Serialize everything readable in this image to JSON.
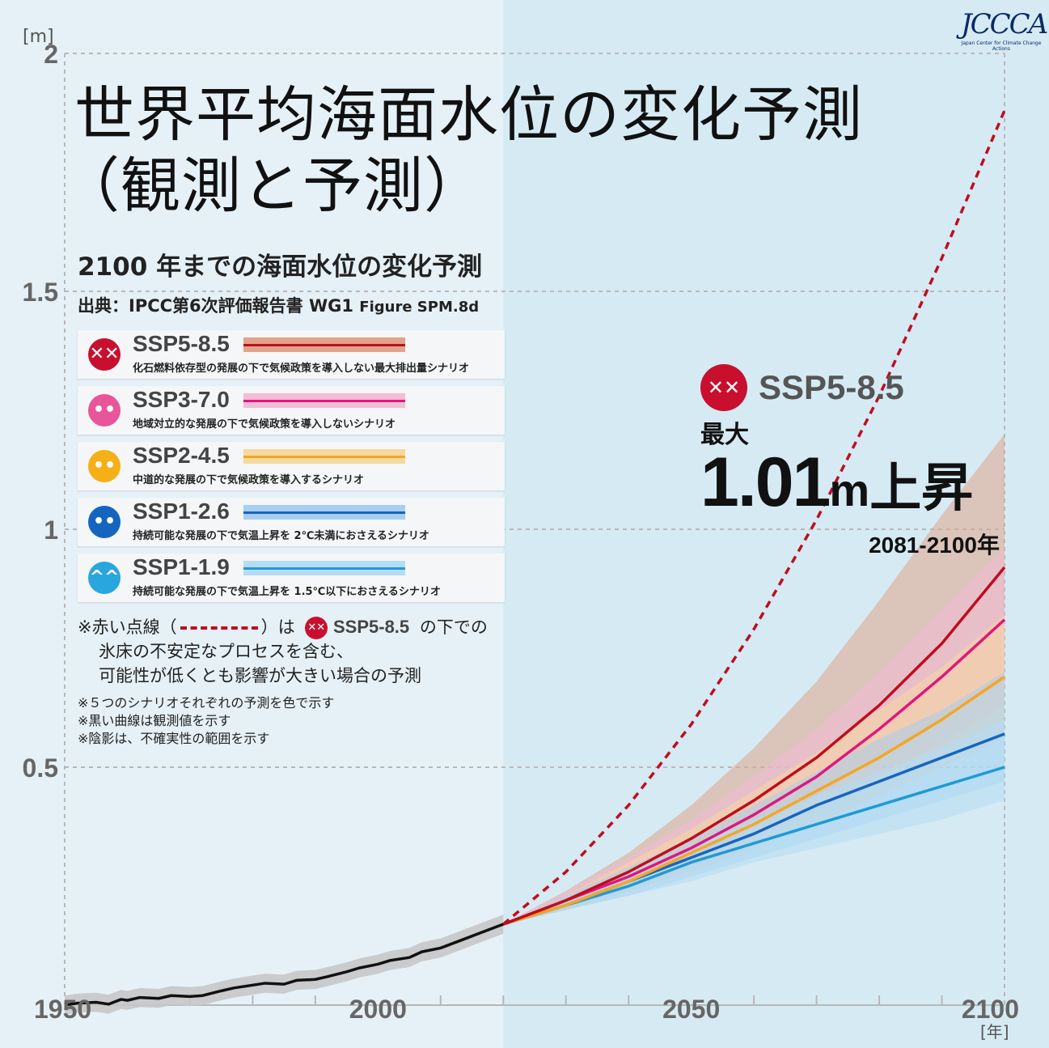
{
  "logo": {
    "name": "JCCCA",
    "subtitle": "Japan Center for Climate Change Actions"
  },
  "title": {
    "line1": "世界平均海面水位の変化予測",
    "line2": "（観測と予測）"
  },
  "subtitle": "2100 年までの海面水位の変化予測",
  "source": {
    "label": "出典：IPCC第6次評価報告書 WG1",
    "figure": "Figure SPM.8d"
  },
  "legend": [
    {
      "id": "ssp585",
      "name": "SSP5-8.5",
      "desc": "化石燃料依存型の発展の下で気候政策を導入しない最大排出量シナリオ",
      "color": "#c00d1e",
      "band": "#e0a48a",
      "face": "✕✕",
      "face_color": "#c8102e"
    },
    {
      "id": "ssp370",
      "name": "SSP3-7.0",
      "desc": "地域対立的な発展の下で気候政策を導入しないシナリオ",
      "color": "#e0177f",
      "band": "#f2bcd4",
      "face": "••",
      "face_color": "#e9559a"
    },
    {
      "id": "ssp245",
      "name": "SSP2-4.5",
      "desc": "中道的な発展の下で気候政策を導入するシナリオ",
      "color": "#f5a623",
      "band": "#f5d9a0",
      "face": "••",
      "face_color": "#f5b018"
    },
    {
      "id": "ssp126",
      "name": "SSP1-2.6",
      "desc": "持続可能な発展の下で気温上昇を 2℃未満におさえるシナリオ",
      "color": "#1565c0",
      "band": "#a8cdef",
      "face": "••",
      "face_color": "#1565c0"
    },
    {
      "id": "ssp119",
      "name": "SSP1-1.9",
      "desc": "持続可能な発展の下で気温上昇を 1.5℃以下におさえるシナリオ",
      "color": "#1e9ad6",
      "band": "#b5dcf2",
      "face": "^^",
      "face_color": "#2aa6de"
    }
  ],
  "notes": {
    "red_dot_a": "※赤い点線（",
    "red_dot_b": "）は",
    "red_dot_scn": "SSP5-8.5",
    "red_dot_c": "の下での",
    "line2": "氷床の不安定なプロセスを含む、",
    "line3": "可能性が低くとも影響が大きい場合の予測",
    "small1": "※５つのシナリオそれぞれの予測を色で示す",
    "small2": "※黒い曲線は観測値を示す",
    "small3": "※陰影は、不確実性の範囲を示す"
  },
  "annotation": {
    "scenario": "SSP5-8.5",
    "max_label": "最大",
    "value": "1.01",
    "unit": "m",
    "suffix": "上昇",
    "period": "2081-2100年"
  },
  "colors": {
    "bg_observed": "#e5f1f7",
    "bg_projection": "#d6eaf4",
    "grid": "#b8b8b8",
    "axis_text": "#666666",
    "observed": "#111111",
    "observed_band": "#c7c7c7",
    "low_likelihood": "#c00d1e"
  },
  "chart_data": {
    "type": "line",
    "title": "世界平均海面水位の変化予測（観測と予測）",
    "xlabel": "[年]",
    "ylabel": "[m]",
    "xlim": [
      1950,
      2100
    ],
    "ylim": [
      0,
      2
    ],
    "x_ticks": [
      1950,
      2000,
      2050,
      2100
    ],
    "y_ticks": [
      0.5,
      1,
      1.5,
      2
    ],
    "y_tick_labels": [
      "0.5",
      "1",
      "1.5",
      "2"
    ],
    "x_tick_labels": [
      "1950",
      "2000",
      "2050",
      "2100"
    ],
    "projection_start": 2020,
    "observed": {
      "x": [
        1950,
        1952,
        1955,
        1957,
        1959,
        1960,
        1962,
        1965,
        1967,
        1970,
        1972,
        1975,
        1977,
        1980,
        1982,
        1985,
        1987,
        1990,
        1992,
        1995,
        1997,
        2000,
        2002,
        2005,
        2007,
        2010,
        2012,
        2014,
        2016,
        2018,
        2020
      ],
      "y": [
        0.0,
        0.004,
        0.006,
        0.002,
        0.012,
        0.01,
        0.016,
        0.014,
        0.02,
        0.018,
        0.02,
        0.03,
        0.036,
        0.042,
        0.046,
        0.044,
        0.052,
        0.054,
        0.06,
        0.07,
        0.078,
        0.086,
        0.094,
        0.1,
        0.112,
        0.12,
        0.13,
        0.14,
        0.15,
        0.16,
        0.17
      ],
      "band": 0.02
    },
    "series": [
      {
        "name": "SSP5-8.5",
        "x": [
          2020,
          2030,
          2040,
          2050,
          2060,
          2070,
          2080,
          2090,
          2100
        ],
        "y": [
          0.17,
          0.22,
          0.28,
          0.35,
          0.43,
          0.52,
          0.63,
          0.76,
          0.92
        ],
        "low": [
          0.17,
          0.2,
          0.25,
          0.3,
          0.37,
          0.44,
          0.52,
          0.6,
          0.68
        ],
        "high": [
          0.17,
          0.24,
          0.32,
          0.42,
          0.54,
          0.68,
          0.85,
          1.03,
          1.2
        ]
      },
      {
        "name": "SSP3-7.0",
        "x": [
          2020,
          2030,
          2040,
          2050,
          2060,
          2070,
          2080,
          2090,
          2100
        ],
        "y": [
          0.17,
          0.22,
          0.27,
          0.33,
          0.4,
          0.48,
          0.58,
          0.69,
          0.81
        ],
        "low": [
          0.17,
          0.2,
          0.24,
          0.29,
          0.35,
          0.41,
          0.48,
          0.55,
          0.63
        ],
        "high": [
          0.17,
          0.24,
          0.31,
          0.39,
          0.48,
          0.58,
          0.7,
          0.83,
          0.96
        ]
      },
      {
        "name": "SSP2-4.5",
        "x": [
          2020,
          2030,
          2040,
          2050,
          2060,
          2070,
          2080,
          2090,
          2100
        ],
        "y": [
          0.17,
          0.21,
          0.26,
          0.32,
          0.38,
          0.45,
          0.52,
          0.6,
          0.69
        ],
        "low": [
          0.17,
          0.2,
          0.24,
          0.28,
          0.33,
          0.38,
          0.44,
          0.5,
          0.56
        ],
        "high": [
          0.17,
          0.23,
          0.3,
          0.37,
          0.45,
          0.53,
          0.62,
          0.71,
          0.82
        ]
      },
      {
        "name": "SSP1-2.6",
        "x": [
          2020,
          2030,
          2040,
          2050,
          2060,
          2070,
          2080,
          2090,
          2100
        ],
        "y": [
          0.17,
          0.21,
          0.26,
          0.31,
          0.36,
          0.42,
          0.47,
          0.52,
          0.57
        ],
        "low": [
          0.17,
          0.2,
          0.23,
          0.27,
          0.31,
          0.35,
          0.39,
          0.43,
          0.47
        ],
        "high": [
          0.17,
          0.23,
          0.29,
          0.35,
          0.42,
          0.49,
          0.56,
          0.62,
          0.7
        ]
      },
      {
        "name": "SSP1-1.9",
        "x": [
          2020,
          2030,
          2040,
          2050,
          2060,
          2070,
          2080,
          2090,
          2100
        ],
        "y": [
          0.17,
          0.21,
          0.25,
          0.3,
          0.34,
          0.38,
          0.42,
          0.46,
          0.5
        ],
        "low": [
          0.17,
          0.2,
          0.23,
          0.26,
          0.3,
          0.33,
          0.36,
          0.39,
          0.43
        ],
        "high": [
          0.17,
          0.22,
          0.28,
          0.33,
          0.39,
          0.44,
          0.49,
          0.54,
          0.6
        ]
      }
    ],
    "low_likelihood": {
      "name": "SSP5-8.5 low-likelihood high-impact",
      "x": [
        2020,
        2030,
        2040,
        2050,
        2060,
        2070,
        2080,
        2090,
        2100
      ],
      "y": [
        0.17,
        0.28,
        0.42,
        0.59,
        0.79,
        1.02,
        1.28,
        1.57,
        1.88
      ]
    }
  }
}
